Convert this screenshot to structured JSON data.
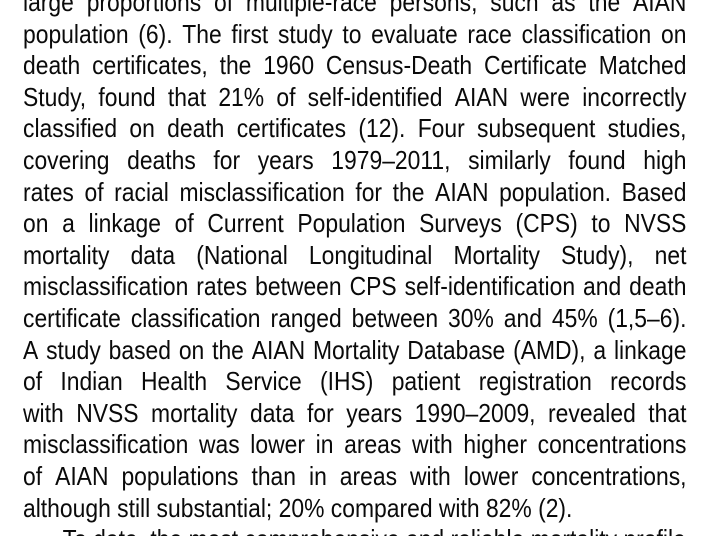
{
  "page": {
    "background_color": "#ffffff",
    "text_color": "#0a0a0a"
  },
  "lines": [
    {
      "text": "large proportions of multiple-race persons, such as the AIAN"
    },
    {
      "text": "population (6). The first study to evaluate race classification on"
    },
    {
      "text": "death certificates, the 1960 Census-Death Certificate Matched"
    },
    {
      "text": "Study, found that 21% of self-identified AIAN were incorrectly"
    },
    {
      "text": "classified on death certificates (12). Four subsequent studies,"
    },
    {
      "text": "covering deaths for years 1979–2011, similarly found high"
    },
    {
      "text": "rates of racial misclassification for the AIAN population. Based"
    },
    {
      "text": "on a linkage of Current Population Surveys (CPS) to NVSS"
    },
    {
      "text": "mortality data (National Longitudinal Mortality Study), net"
    },
    {
      "text": "misclassification rates between CPS self-identification and death"
    },
    {
      "text": "certificate classification ranged between 30% and 45% (1,5–6)."
    },
    {
      "text": "A study based on the AIAN Mortality Database (AMD), a linkage"
    },
    {
      "text": "of Indian Health Service (IHS) patient registration records"
    },
    {
      "text": "with NVSS mortality data for years 1990–2009, revealed that"
    },
    {
      "text": "misclassification was lower in areas with higher concentrations"
    },
    {
      "text": "of AIAN populations than in areas with lower concentrations,"
    },
    {
      "text": "although still substantial; 20% compared with 82% (2)."
    },
    {
      "text": "To date, the most comprehensive and reliable mortality profile"
    }
  ]
}
